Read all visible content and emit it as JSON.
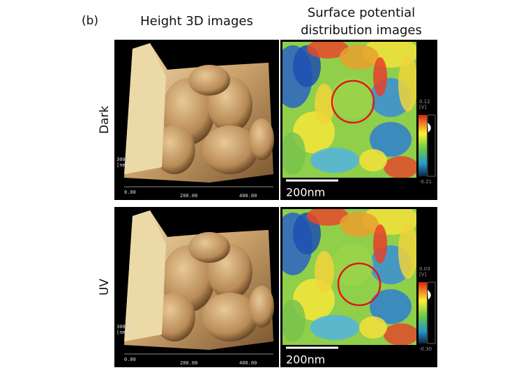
{
  "panel_label": "(b)",
  "columns": {
    "height": "Height 3D images",
    "potential": [
      "Surface potential",
      "distribution images"
    ]
  },
  "rows": [
    {
      "label": "Dark",
      "height_image": {
        "z_label": "300.00",
        "z_unit": "[nm]",
        "x_ticks": [
          "0.00",
          "200.00",
          "400.00"
        ]
      },
      "potential_image": {
        "scale_bar": "200nm",
        "colorbar": {
          "max": "0.12",
          "unit": "[V]",
          "min": "-0.21"
        }
      }
    },
    {
      "label": "UV",
      "height_image": {
        "z_label": "300.00",
        "z_unit": "[nm]",
        "x_ticks": [
          "0.00",
          "200.00",
          "400.00"
        ]
      },
      "potential_image": {
        "scale_bar": "200nm",
        "colorbar": {
          "max": "0.03",
          "unit": "[V]",
          "min": "-0.30"
        }
      }
    }
  ]
}
